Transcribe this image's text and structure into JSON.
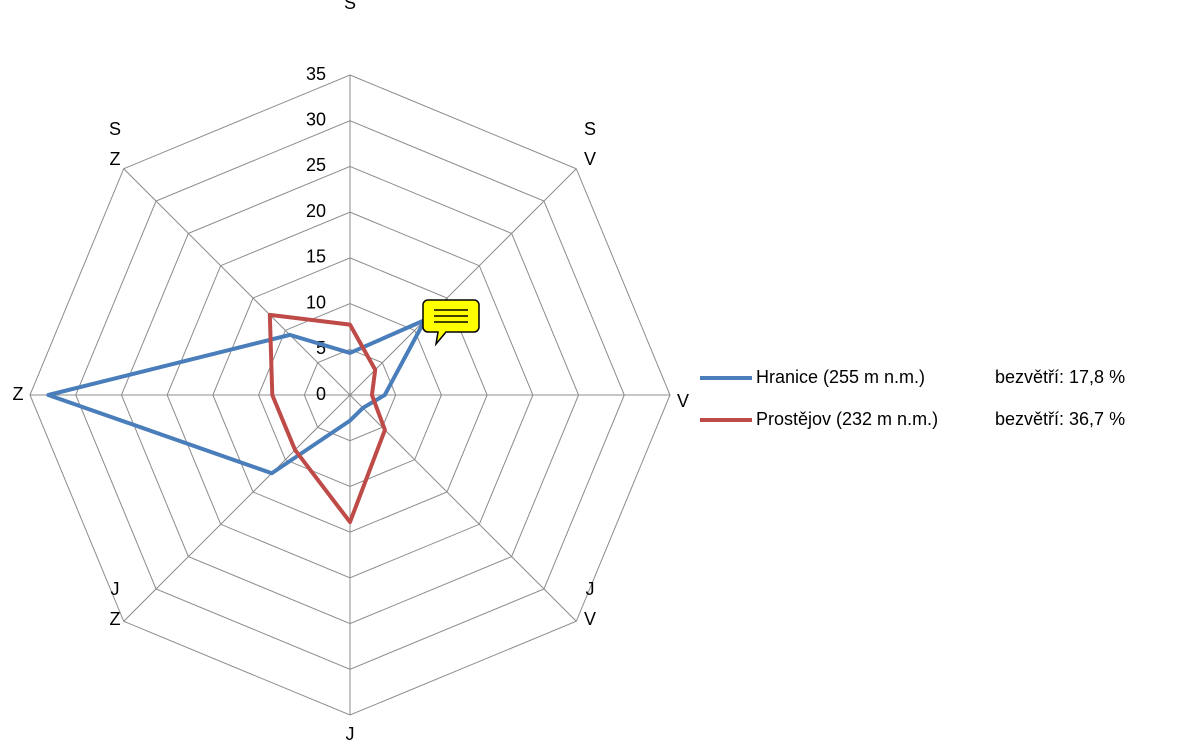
{
  "chart_data": {
    "type": "radar",
    "categories": [
      "S",
      "SV",
      "V",
      "JV",
      "J",
      "JZ",
      "Z",
      "SZ"
    ],
    "series": [
      {
        "name": "Hranice (255 m n.m.)",
        "color": "#4a7ebb",
        "values": [
          4.6,
          11.6,
          3.8,
          2.0,
          2.8,
          12.1,
          33,
          9.3
        ]
      },
      {
        "name": "Prostějov (232 m n.m.)",
        "color": "#be4b48",
        "values": [
          7.7,
          3.9,
          2.4,
          5.4,
          13.9,
          8.5,
          8.5,
          12.4
        ]
      }
    ],
    "annotations": [
      "bezvětří: 17,8 %",
      "bezvětří: 36,7 %"
    ],
    "ylim": [
      0,
      35
    ],
    "yticks": [
      0,
      5,
      10,
      15,
      20,
      25,
      30,
      35
    ],
    "grid": true,
    "legend": "right"
  }
}
